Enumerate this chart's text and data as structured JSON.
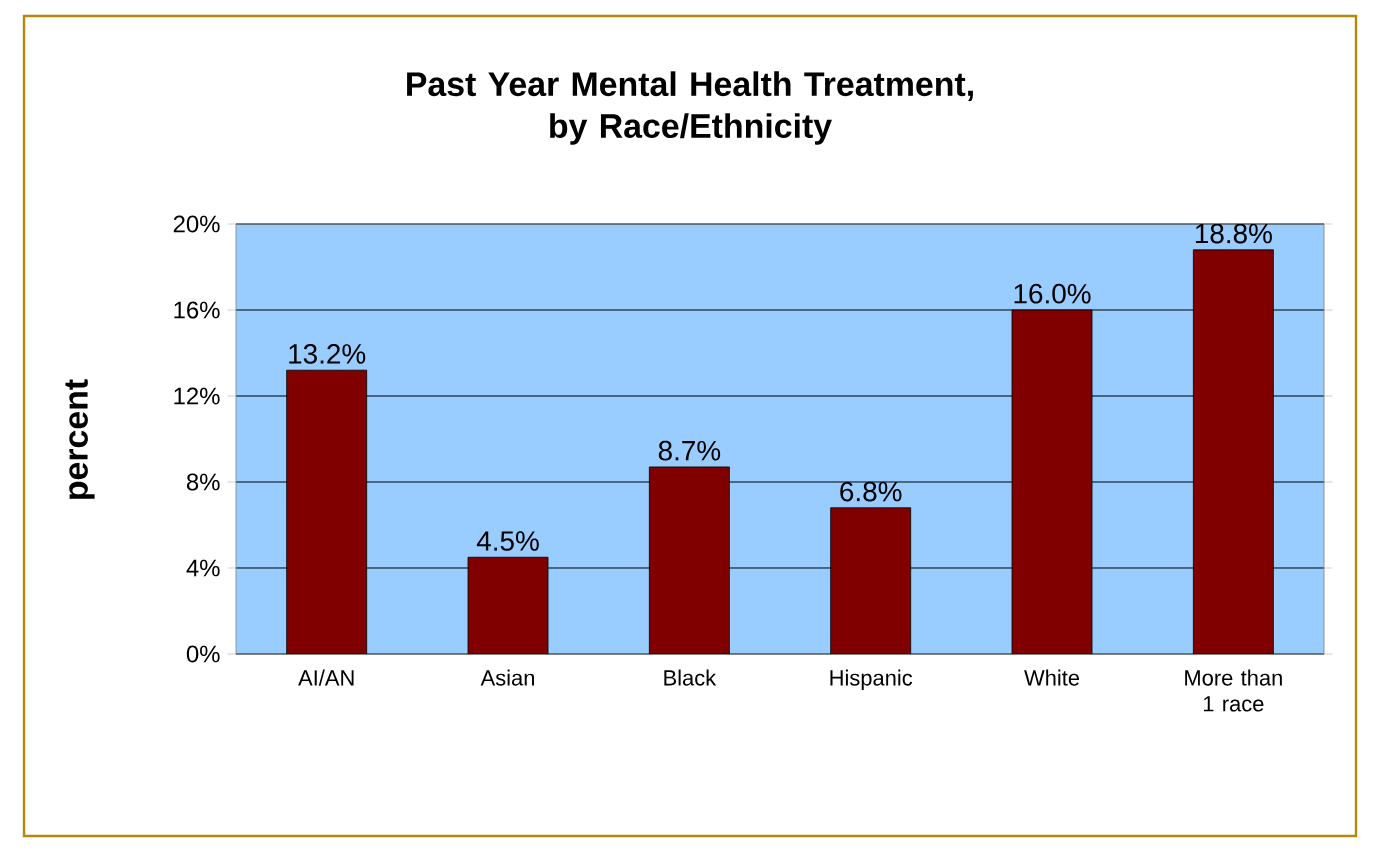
{
  "chart_data": {
    "type": "bar",
    "title": "Past Year Mental Health Treatment,\nby Race/Ethnicity",
    "ylabel": "percent",
    "categories": [
      "AI/AN",
      "Asian",
      "Black",
      "Hispanic",
      "White",
      "More than 1 race"
    ],
    "values": [
      13.2,
      4.5,
      8.7,
      6.8,
      16.0,
      18.8
    ],
    "value_labels": [
      "13.2%",
      "4.5%",
      "8.7%",
      "6.8%",
      "16.0%",
      "18.8%"
    ],
    "color": "#800000",
    "ylim": [
      0,
      20
    ],
    "yticks": [
      {
        "value": 0,
        "label": "0%"
      },
      {
        "value": 4,
        "label": "4%"
      },
      {
        "value": 8,
        "label": "8%"
      },
      {
        "value": 12,
        "label": "12%"
      },
      {
        "value": 16,
        "label": "16%"
      },
      {
        "value": 20,
        "label": "20%"
      }
    ],
    "grid": "y"
  }
}
